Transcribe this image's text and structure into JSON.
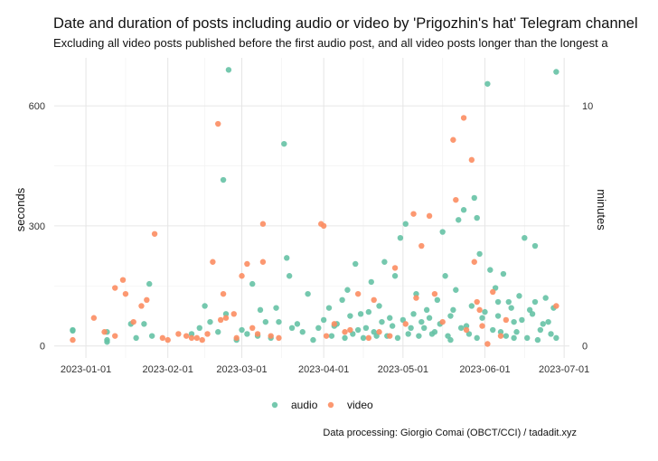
{
  "chart_data": {
    "type": "scatter",
    "title": "Date and duration of posts including audio or video by 'Prigozhin's hat' Telegram channel",
    "subtitle": "Excluding all video posts published before the first audio post, and all video posts longer than the longest a",
    "caption": "Data processing: Giorgio Comai (OBCT/CCI) / tadadit.xyz",
    "xlabel": "",
    "ylabel": "seconds",
    "ylabel_secondary": "minutes",
    "x_range": [
      "2022-12-20",
      "2023-07-03"
    ],
    "ylim": [
      -30,
      720
    ],
    "x_ticks": [
      "2023-01-01",
      "2023-02-01",
      "2023-03-01",
      "2023-04-01",
      "2023-05-01",
      "2023-06-01",
      "2023-07-01"
    ],
    "y_ticks": [
      0,
      300,
      600
    ],
    "y2_ticks": [
      0,
      10
    ],
    "grid": true,
    "legend_position": "bottom",
    "colors": {
      "audio": "#66c2a5",
      "video": "#fc8d62"
    },
    "series": [
      {
        "name": "audio",
        "points": [
          {
            "x": "2022-12-27",
            "y": 40
          },
          {
            "x": "2022-12-27",
            "y": 38
          },
          {
            "x": "2023-01-09",
            "y": 35
          },
          {
            "x": "2023-01-09",
            "y": 15
          },
          {
            "x": "2023-01-09",
            "y": 10
          },
          {
            "x": "2023-01-18",
            "y": 55
          },
          {
            "x": "2023-01-20",
            "y": 20
          },
          {
            "x": "2023-01-25",
            "y": 155
          },
          {
            "x": "2023-01-23",
            "y": 55
          },
          {
            "x": "2023-01-26",
            "y": 25
          },
          {
            "x": "2023-02-10",
            "y": 30
          },
          {
            "x": "2023-02-13",
            "y": 45
          },
          {
            "x": "2023-02-15",
            "y": 100
          },
          {
            "x": "2023-02-17",
            "y": 60
          },
          {
            "x": "2023-02-20",
            "y": 35
          },
          {
            "x": "2023-02-22",
            "y": 415
          },
          {
            "x": "2023-02-23",
            "y": 80
          },
          {
            "x": "2023-02-24",
            "y": 690
          },
          {
            "x": "2023-02-27",
            "y": 15
          },
          {
            "x": "2023-03-01",
            "y": 40
          },
          {
            "x": "2023-03-03",
            "y": 30
          },
          {
            "x": "2023-03-05",
            "y": 155
          },
          {
            "x": "2023-03-08",
            "y": 90
          },
          {
            "x": "2023-03-10",
            "y": 60
          },
          {
            "x": "2023-03-12",
            "y": 20
          },
          {
            "x": "2023-03-14",
            "y": 95
          },
          {
            "x": "2023-03-17",
            "y": 505
          },
          {
            "x": "2023-03-18",
            "y": 220
          },
          {
            "x": "2023-03-19",
            "y": 175
          },
          {
            "x": "2023-03-20",
            "y": 45
          },
          {
            "x": "2023-03-24",
            "y": 35
          },
          {
            "x": "2023-03-26",
            "y": 130
          },
          {
            "x": "2023-03-28",
            "y": 15
          },
          {
            "x": "2023-04-01",
            "y": 65
          },
          {
            "x": "2023-04-03",
            "y": 95
          },
          {
            "x": "2023-04-05",
            "y": 50
          },
          {
            "x": "2023-04-08",
            "y": 115
          },
          {
            "x": "2023-04-10",
            "y": 140
          },
          {
            "x": "2023-04-12",
            "y": 30
          },
          {
            "x": "2023-04-13",
            "y": 205
          },
          {
            "x": "2023-04-15",
            "y": 80
          },
          {
            "x": "2023-04-17",
            "y": 45
          },
          {
            "x": "2023-04-19",
            "y": 160
          },
          {
            "x": "2023-04-21",
            "y": 25
          },
          {
            "x": "2023-04-22",
            "y": 100
          },
          {
            "x": "2023-04-24",
            "y": 210
          },
          {
            "x": "2023-04-26",
            "y": 70
          },
          {
            "x": "2023-04-28",
            "y": 175
          },
          {
            "x": "2023-04-30",
            "y": 270
          },
          {
            "x": "2023-05-02",
            "y": 305
          },
          {
            "x": "2023-05-04",
            "y": 45
          },
          {
            "x": "2023-05-06",
            "y": 130
          },
          {
            "x": "2023-05-08",
            "y": 60
          },
          {
            "x": "2023-05-10",
            "y": 90
          },
          {
            "x": "2023-05-12",
            "y": 30
          },
          {
            "x": "2023-05-14",
            "y": 115
          },
          {
            "x": "2023-05-16",
            "y": 285
          },
          {
            "x": "2023-05-17",
            "y": 175
          },
          {
            "x": "2023-05-19",
            "y": 75
          },
          {
            "x": "2023-05-21",
            "y": 140
          },
          {
            "x": "2023-05-22",
            "y": 315
          },
          {
            "x": "2023-05-24",
            "y": 340
          },
          {
            "x": "2023-05-25",
            "y": 50
          },
          {
            "x": "2023-05-27",
            "y": 100
          },
          {
            "x": "2023-05-28",
            "y": 370
          },
          {
            "x": "2023-05-29",
            "y": 320
          },
          {
            "x": "2023-05-30",
            "y": 230
          },
          {
            "x": "2023-05-31",
            "y": 70
          },
          {
            "x": "2023-06-02",
            "y": 655
          },
          {
            "x": "2023-06-03",
            "y": 190
          },
          {
            "x": "2023-06-05",
            "y": 145
          },
          {
            "x": "2023-06-07",
            "y": 35
          },
          {
            "x": "2023-06-08",
            "y": 180
          },
          {
            "x": "2023-06-10",
            "y": 110
          },
          {
            "x": "2023-06-12",
            "y": 60
          },
          {
            "x": "2023-06-14",
            "y": 125
          },
          {
            "x": "2023-06-16",
            "y": 270
          },
          {
            "x": "2023-06-18",
            "y": 90
          },
          {
            "x": "2023-06-20",
            "y": 250
          },
          {
            "x": "2023-06-22",
            "y": 40
          },
          {
            "x": "2023-06-24",
            "y": 120
          },
          {
            "x": "2023-06-26",
            "y": 30
          },
          {
            "x": "2023-06-28",
            "y": 685
          },
          {
            "x": "2023-06-27",
            "y": 95
          },
          {
            "x": "2023-06-25",
            "y": 60
          },
          {
            "x": "2023-04-04",
            "y": 25
          },
          {
            "x": "2023-04-06",
            "y": 55
          },
          {
            "x": "2023-04-09",
            "y": 20
          },
          {
            "x": "2023-04-11",
            "y": 75
          },
          {
            "x": "2023-04-14",
            "y": 40
          },
          {
            "x": "2023-04-16",
            "y": 20
          },
          {
            "x": "2023-04-18",
            "y": 85
          },
          {
            "x": "2023-04-20",
            "y": 35
          },
          {
            "x": "2023-04-23",
            "y": 60
          },
          {
            "x": "2023-04-25",
            "y": 25
          },
          {
            "x": "2023-04-27",
            "y": 50
          },
          {
            "x": "2023-04-29",
            "y": 20
          },
          {
            "x": "2023-05-01",
            "y": 65
          },
          {
            "x": "2023-05-03",
            "y": 30
          },
          {
            "x": "2023-05-05",
            "y": 80
          },
          {
            "x": "2023-05-07",
            "y": 25
          },
          {
            "x": "2023-05-09",
            "y": 45
          },
          {
            "x": "2023-05-11",
            "y": 70
          },
          {
            "x": "2023-05-13",
            "y": 35
          },
          {
            "x": "2023-05-15",
            "y": 55
          },
          {
            "x": "2023-05-18",
            "y": 25
          },
          {
            "x": "2023-05-20",
            "y": 90
          },
          {
            "x": "2023-05-23",
            "y": 45
          },
          {
            "x": "2023-05-26",
            "y": 30
          },
          {
            "x": "2023-06-01",
            "y": 85
          },
          {
            "x": "2023-06-04",
            "y": 40
          },
          {
            "x": "2023-06-06",
            "y": 75
          },
          {
            "x": "2023-06-09",
            "y": 25
          },
          {
            "x": "2023-06-11",
            "y": 95
          },
          {
            "x": "2023-06-13",
            "y": 35
          },
          {
            "x": "2023-06-15",
            "y": 65
          },
          {
            "x": "2023-06-17",
            "y": 20
          },
          {
            "x": "2023-06-19",
            "y": 80
          },
          {
            "x": "2023-06-21",
            "y": 15
          },
          {
            "x": "2023-06-23",
            "y": 55
          },
          {
            "x": "2023-03-22",
            "y": 55
          },
          {
            "x": "2023-03-15",
            "y": 60
          },
          {
            "x": "2023-03-07",
            "y": 25
          },
          {
            "x": "2023-03-30",
            "y": 45
          },
          {
            "x": "2023-05-19",
            "y": 15
          },
          {
            "x": "2023-05-29",
            "y": 20
          },
          {
            "x": "2023-06-06",
            "y": 110
          },
          {
            "x": "2023-06-12",
            "y": 20
          },
          {
            "x": "2023-06-20",
            "y": 110
          },
          {
            "x": "2023-06-28",
            "y": 20
          }
        ]
      },
      {
        "name": "video",
        "points": [
          {
            "x": "2022-12-27",
            "y": 15
          },
          {
            "x": "2023-01-04",
            "y": 70
          },
          {
            "x": "2023-01-08",
            "y": 35
          },
          {
            "x": "2023-01-12",
            "y": 145
          },
          {
            "x": "2023-01-12",
            "y": 25
          },
          {
            "x": "2023-01-15",
            "y": 165
          },
          {
            "x": "2023-01-16",
            "y": 130
          },
          {
            "x": "2023-01-19",
            "y": 60
          },
          {
            "x": "2023-01-22",
            "y": 100
          },
          {
            "x": "2023-01-24",
            "y": 115
          },
          {
            "x": "2023-01-27",
            "y": 280
          },
          {
            "x": "2023-01-30",
            "y": 20
          },
          {
            "x": "2023-02-01",
            "y": 15
          },
          {
            "x": "2023-02-05",
            "y": 30
          },
          {
            "x": "2023-02-08",
            "y": 25
          },
          {
            "x": "2023-02-12",
            "y": 20
          },
          {
            "x": "2023-02-16",
            "y": 30
          },
          {
            "x": "2023-02-18",
            "y": 210
          },
          {
            "x": "2023-02-20",
            "y": 555
          },
          {
            "x": "2023-02-21",
            "y": 65
          },
          {
            "x": "2023-02-22",
            "y": 130
          },
          {
            "x": "2023-02-23",
            "y": 70
          },
          {
            "x": "2023-02-26",
            "y": 80
          },
          {
            "x": "2023-03-01",
            "y": 175
          },
          {
            "x": "2023-03-03",
            "y": 205
          },
          {
            "x": "2023-03-05",
            "y": 45
          },
          {
            "x": "2023-03-07",
            "y": 30
          },
          {
            "x": "2023-03-09",
            "y": 210
          },
          {
            "x": "2023-03-09",
            "y": 305
          },
          {
            "x": "2023-03-15",
            "y": 20
          },
          {
            "x": "2023-03-31",
            "y": 305
          },
          {
            "x": "2023-04-01",
            "y": 300
          },
          {
            "x": "2023-04-02",
            "y": 25
          },
          {
            "x": "2023-04-05",
            "y": 55
          },
          {
            "x": "2023-04-09",
            "y": 35
          },
          {
            "x": "2023-04-14",
            "y": 130
          },
          {
            "x": "2023-04-18",
            "y": 20
          },
          {
            "x": "2023-04-20",
            "y": 115
          },
          {
            "x": "2023-04-22",
            "y": 35
          },
          {
            "x": "2023-04-26",
            "y": 25
          },
          {
            "x": "2023-04-28",
            "y": 195
          },
          {
            "x": "2023-05-02",
            "y": 55
          },
          {
            "x": "2023-05-05",
            "y": 330
          },
          {
            "x": "2023-05-06",
            "y": 120
          },
          {
            "x": "2023-05-08",
            "y": 250
          },
          {
            "x": "2023-05-11",
            "y": 325
          },
          {
            "x": "2023-05-13",
            "y": 130
          },
          {
            "x": "2023-05-20",
            "y": 515
          },
          {
            "x": "2023-05-21",
            "y": 365
          },
          {
            "x": "2023-05-24",
            "y": 570
          },
          {
            "x": "2023-05-27",
            "y": 465
          },
          {
            "x": "2023-05-28",
            "y": 210
          },
          {
            "x": "2023-05-29",
            "y": 110
          },
          {
            "x": "2023-05-30",
            "y": 90
          },
          {
            "x": "2023-05-31",
            "y": 50
          },
          {
            "x": "2023-06-02",
            "y": 5
          },
          {
            "x": "2023-06-04",
            "y": 135
          },
          {
            "x": "2023-06-07",
            "y": 25
          },
          {
            "x": "2023-06-09",
            "y": 65
          },
          {
            "x": "2023-06-28",
            "y": 100
          },
          {
            "x": "2023-02-10",
            "y": 20
          },
          {
            "x": "2023-02-14",
            "y": 15
          },
          {
            "x": "2023-02-27",
            "y": 20
          },
          {
            "x": "2023-03-12",
            "y": 25
          },
          {
            "x": "2023-04-11",
            "y": 40
          },
          {
            "x": "2023-05-16",
            "y": 60
          },
          {
            "x": "2023-05-25",
            "y": 40
          }
        ]
      }
    ]
  }
}
